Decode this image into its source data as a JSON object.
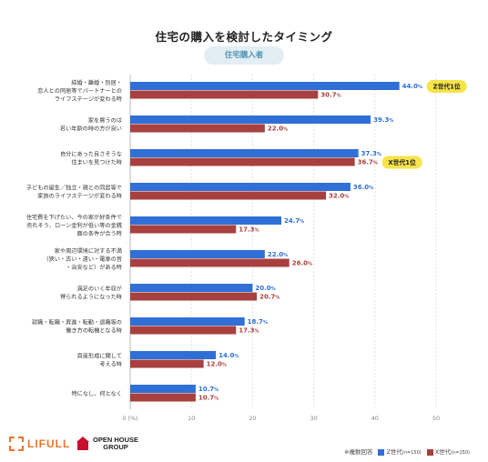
{
  "title": "住宅の購入を検討したタイミング",
  "subtitle": "住宅購入者",
  "chart_data": {
    "type": "bar",
    "orientation": "horizontal",
    "categories": [
      [
        "結婚・離婚・別居・",
        "恋人との同居等でパートナーとの",
        "ライフステージが変わる時"
      ],
      [
        "家を買うのは",
        "若い年齢の時の方が良い"
      ],
      [
        "自分にあった良さそうな",
        "住まいを見つけた時"
      ],
      [
        "子どもの誕生／独立・親との同居等で",
        "家族のライフステージが変わる時"
      ],
      [
        "住宅費を下げたい、今の家が好条件で",
        "売れそう、ローン金利が低い等の金銭",
        "面の条件が合う時"
      ],
      [
        "家や周辺環境に対する不満",
        "（狭い・古い・遠い・電車の音",
        "・治安など）がある時"
      ],
      [
        "満足のいく年収が",
        "得られるようになった時"
      ],
      [
        "就職・転職・昇進・転勤・退職等の",
        "働き方の転機となる時"
      ],
      [
        "資産形成に関して",
        "考える時"
      ],
      [
        "特になし、何となく"
      ]
    ],
    "series": [
      {
        "name": "Z世代",
        "note": "(n=150)",
        "color": "#2f6fd6",
        "values": [
          44.0,
          39.3,
          37.3,
          36.0,
          24.7,
          22.0,
          20.0,
          18.7,
          14.0,
          10.7
        ]
      },
      {
        "name": "X世代",
        "note": "(n=150)",
        "color": "#a8403f",
        "values": [
          30.7,
          22.0,
          36.7,
          32.0,
          17.3,
          26.0,
          20.7,
          17.3,
          12.0,
          10.7
        ]
      }
    ],
    "value_suffix": "%",
    "x_ticks": [
      0,
      10,
      20,
      30,
      40,
      50
    ],
    "x_unit_label": "(%)",
    "xlim": [
      0,
      50
    ],
    "grid": true,
    "legend_position": "bottom-right",
    "annotations": [
      {
        "text": "Z世代1位",
        "series": 0,
        "category_index": 0,
        "color": "#f7e34a"
      },
      {
        "text": "X世代1位",
        "series": 1,
        "category_index": 2,
        "color": "#f7e34a"
      }
    ]
  },
  "footer": {
    "note": "※複数回答",
    "logo_lifull": "LIFULL",
    "logo_openhouse_line1": "OPEN HOUSE",
    "logo_openhouse_line2": "GROUP"
  }
}
